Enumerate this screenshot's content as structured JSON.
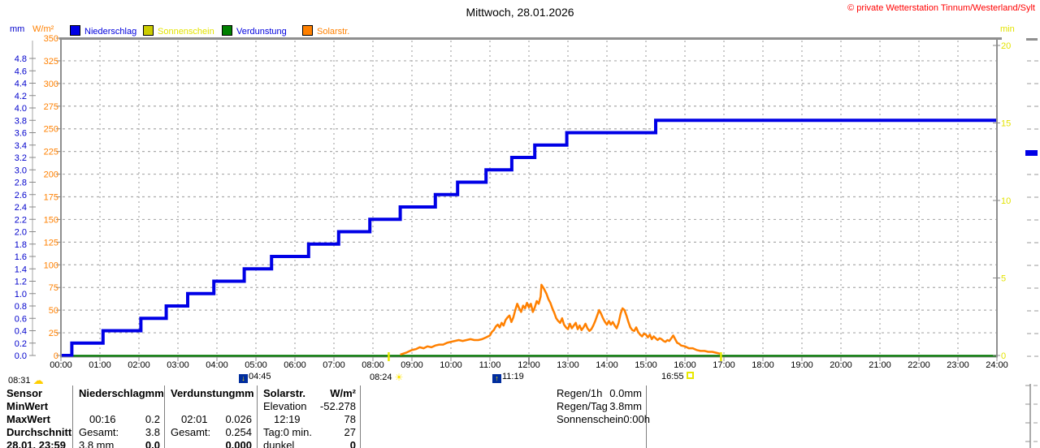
{
  "header": {
    "title": "Mittwoch, 28.01.2026",
    "copyright": "© private Wetterstation Tinnum/Westerland/Sylt"
  },
  "units": {
    "mm": "mm",
    "wm2": "W/m²",
    "min": "min"
  },
  "legend": {
    "items": [
      {
        "label": "Niederschlag",
        "box_color": "#0000e6",
        "text_color": "#0000dd"
      },
      {
        "label": "Sonnenschein",
        "box_color": "#cccc00",
        "text_color": "#e3e300"
      },
      {
        "label": "Verdunstung",
        "box_color": "#008000",
        "text_color": "#0000dd"
      },
      {
        "label": "Solarstr.",
        "box_color": "#ff8000",
        "text_color": "#ff8000"
      }
    ]
  },
  "astro_markers": {
    "moonset": {
      "time": "04:45"
    },
    "sunrise": {
      "time": "08:24"
    },
    "moonrise": {
      "time": "11:19"
    },
    "sunset": {
      "time": "16:55"
    },
    "corner": {
      "time": "08:31"
    }
  },
  "chart_data": {
    "type": "line",
    "title": "Mittwoch, 28.01.2026",
    "grid": true,
    "x_axis": {
      "range_hours": [
        0,
        24
      ],
      "ticks": [
        "00:00",
        "01:00",
        "02:00",
        "03:00",
        "04:00",
        "05:00",
        "06:00",
        "07:00",
        "08:00",
        "09:00",
        "10:00",
        "11:00",
        "12:00",
        "13:00",
        "14:00",
        "15:00",
        "16:00",
        "17:00",
        "18:00",
        "19:00",
        "20:00",
        "21:00",
        "22:00",
        "23:00",
        "24:00"
      ]
    },
    "y_axes": [
      {
        "id": "mm",
        "side": "left",
        "color": "#0000cc",
        "ylim": [
          0,
          4.8
        ],
        "ticks": [
          "0.0",
          "0.2",
          "0.4",
          "0.6",
          "0.8",
          "1.0",
          "1.2",
          "1.4",
          "1.6",
          "1.8",
          "2.0",
          "2.2",
          "2.4",
          "2.6",
          "2.8",
          "3.0",
          "3.2",
          "3.4",
          "3.6",
          "3.8",
          "4.0",
          "4.2",
          "4.4",
          "4.6",
          "4.8"
        ]
      },
      {
        "id": "wm2",
        "side": "left",
        "color": "#ff8000",
        "ylim": [
          0,
          350
        ],
        "ticks": [
          "0",
          "25",
          "50",
          "75",
          "100",
          "125",
          "150",
          "175",
          "200",
          "225",
          "250",
          "275",
          "300",
          "325",
          "350"
        ]
      },
      {
        "id": "min",
        "side": "right",
        "color": "#e3e300",
        "ylim": [
          0,
          20
        ],
        "ticks": [
          "0",
          "5",
          "10",
          "15",
          "20"
        ]
      }
    ],
    "series": [
      {
        "name": "Niederschlag",
        "unit": "mm",
        "axis": "mm",
        "color": "#0000e6",
        "style": "step",
        "width": 4,
        "points": [
          [
            0,
            0
          ],
          [
            0.28,
            0.2
          ],
          [
            1.08,
            0.4
          ],
          [
            2.05,
            0.6
          ],
          [
            2.7,
            0.8
          ],
          [
            3.25,
            1.0
          ],
          [
            3.92,
            1.2
          ],
          [
            4.7,
            1.4
          ],
          [
            5.4,
            1.6
          ],
          [
            6.35,
            1.8
          ],
          [
            7.12,
            2.0
          ],
          [
            7.92,
            2.2
          ],
          [
            8.7,
            2.4
          ],
          [
            9.6,
            2.6
          ],
          [
            10.17,
            2.8
          ],
          [
            10.9,
            3.0
          ],
          [
            11.56,
            3.2
          ],
          [
            12.15,
            3.4
          ],
          [
            12.97,
            3.6
          ],
          [
            15.25,
            3.8
          ],
          [
            24,
            3.8
          ]
        ]
      },
      {
        "name": "Verdunstung",
        "unit": "mm",
        "axis": "mm",
        "color": "#007700",
        "style": "line",
        "width": 2.5,
        "points": [
          [
            0,
            0
          ],
          [
            24,
            0
          ]
        ]
      },
      {
        "name": "Sonnenschein",
        "unit": "min",
        "axis": "min",
        "color": "#cccc00",
        "style": "line",
        "width": 2,
        "points": []
      },
      {
        "name": "Solarstr.",
        "unit": "W/m²",
        "axis": "wm2",
        "color": "#ff8000",
        "style": "line",
        "width": 2.5,
        "points": [
          [
            8.7,
            1
          ],
          [
            8.85,
            3
          ],
          [
            9.0,
            6
          ],
          [
            9.1,
            7
          ],
          [
            9.2,
            9
          ],
          [
            9.3,
            8
          ],
          [
            9.4,
            10
          ],
          [
            9.5,
            9
          ],
          [
            9.6,
            11
          ],
          [
            9.7,
            12
          ],
          [
            9.8,
            12
          ],
          [
            9.9,
            14
          ],
          [
            10.0,
            15
          ],
          [
            10.1,
            16
          ],
          [
            10.2,
            17
          ],
          [
            10.3,
            16
          ],
          [
            10.4,
            17
          ],
          [
            10.5,
            18
          ],
          [
            10.6,
            17
          ],
          [
            10.7,
            17
          ],
          [
            10.8,
            18
          ],
          [
            10.9,
            20
          ],
          [
            11.0,
            22
          ],
          [
            11.05,
            26
          ],
          [
            11.1,
            28
          ],
          [
            11.15,
            32
          ],
          [
            11.2,
            34
          ],
          [
            11.25,
            31
          ],
          [
            11.3,
            36
          ],
          [
            11.35,
            33
          ],
          [
            11.4,
            39
          ],
          [
            11.45,
            42
          ],
          [
            11.5,
            44
          ],
          [
            11.55,
            37
          ],
          [
            11.6,
            42
          ],
          [
            11.65,
            50
          ],
          [
            11.7,
            57
          ],
          [
            11.75,
            52
          ],
          [
            11.8,
            48
          ],
          [
            11.85,
            55
          ],
          [
            11.9,
            52
          ],
          [
            11.95,
            58
          ],
          [
            12.0,
            53
          ],
          [
            12.05,
            57
          ],
          [
            12.1,
            48
          ],
          [
            12.15,
            53
          ],
          [
            12.2,
            60
          ],
          [
            12.25,
            57
          ],
          [
            12.3,
            65
          ],
          [
            12.32,
            78
          ],
          [
            12.38,
            74
          ],
          [
            12.45,
            68
          ],
          [
            12.5,
            62
          ],
          [
            12.55,
            58
          ],
          [
            12.6,
            52
          ],
          [
            12.65,
            47
          ],
          [
            12.7,
            41
          ],
          [
            12.75,
            38
          ],
          [
            12.8,
            36
          ],
          [
            12.85,
            41
          ],
          [
            12.9,
            34
          ],
          [
            12.95,
            31
          ],
          [
            13.0,
            29
          ],
          [
            13.05,
            35
          ],
          [
            13.1,
            30
          ],
          [
            13.15,
            33
          ],
          [
            13.2,
            36
          ],
          [
            13.25,
            29
          ],
          [
            13.3,
            33
          ],
          [
            13.35,
            28
          ],
          [
            13.4,
            31
          ],
          [
            13.45,
            35
          ],
          [
            13.5,
            30
          ],
          [
            13.55,
            27
          ],
          [
            13.6,
            29
          ],
          [
            13.65,
            33
          ],
          [
            13.7,
            38
          ],
          [
            13.75,
            44
          ],
          [
            13.8,
            50
          ],
          [
            13.85,
            46
          ],
          [
            13.9,
            41
          ],
          [
            13.95,
            37
          ],
          [
            14.0,
            34
          ],
          [
            14.05,
            38
          ],
          [
            14.1,
            34
          ],
          [
            14.15,
            37
          ],
          [
            14.2,
            33
          ],
          [
            14.25,
            30
          ],
          [
            14.3,
            36
          ],
          [
            14.35,
            46
          ],
          [
            14.4,
            52
          ],
          [
            14.45,
            50
          ],
          [
            14.5,
            44
          ],
          [
            14.55,
            37
          ],
          [
            14.6,
            31
          ],
          [
            14.65,
            28
          ],
          [
            14.7,
            27
          ],
          [
            14.75,
            31
          ],
          [
            14.8,
            26
          ],
          [
            14.85,
            23
          ],
          [
            14.9,
            21
          ],
          [
            14.95,
            24
          ],
          [
            15.0,
            23
          ],
          [
            15.05,
            20
          ],
          [
            15.1,
            23
          ],
          [
            15.15,
            18
          ],
          [
            15.2,
            21
          ],
          [
            15.25,
            19
          ],
          [
            15.3,
            17
          ],
          [
            15.35,
            19
          ],
          [
            15.4,
            18
          ],
          [
            15.45,
            16
          ],
          [
            15.5,
            15
          ],
          [
            15.55,
            17
          ],
          [
            15.6,
            16
          ],
          [
            15.65,
            19
          ],
          [
            15.7,
            22
          ],
          [
            15.75,
            18
          ],
          [
            15.8,
            14
          ],
          [
            15.85,
            13
          ],
          [
            15.9,
            11
          ],
          [
            16.0,
            10
          ],
          [
            16.1,
            8
          ],
          [
            16.2,
            8
          ],
          [
            16.3,
            6
          ],
          [
            16.4,
            5
          ],
          [
            16.5,
            5
          ],
          [
            16.6,
            4
          ],
          [
            16.7,
            4
          ],
          [
            16.8,
            3
          ],
          [
            16.9,
            2
          ]
        ]
      }
    ],
    "event_ticks_hours": {
      "sunrise": 8.4,
      "sunset": 16.92
    },
    "annotations": [
      "04:45 moonset",
      "08:24 sunrise",
      "11:19 moonrise",
      "16:55 sunset"
    ]
  },
  "summary_table": {
    "row_headers": [
      "Sensor",
      "MinWert",
      "MaxWert",
      "Durchschnitt",
      "28.01. 23:59"
    ],
    "niederschlag": {
      "title": "Niederschlag",
      "unit": "mm",
      "max_time": "00:16",
      "max_val": "0.2",
      "avg_label": "Gesamt:",
      "avg_val": "3.8",
      "last_label": "3.8 mm",
      "last_val": "0.0"
    },
    "verdunstung": {
      "title": "Verdunstung",
      "unit": "mm",
      "max_time": "02:01",
      "max_val": "0.026",
      "avg_label": "Gesamt:",
      "avg_val": "0.254",
      "last_label": "",
      "last_val": "0.000"
    },
    "solarstr": {
      "title": "Solarstr.",
      "unit": "W/m²",
      "min_label": "Elevation",
      "min_val": "-52.278",
      "max_time": "12:19",
      "max_val": "78",
      "avg_label": "Tag:0 min.",
      "avg_val": "27",
      "last_label": "dunkel",
      "last_val": "0"
    }
  },
  "rain_stats": [
    {
      "label": "Regen/1h",
      "value": "0.0mm"
    },
    {
      "label": "Regen/Tag",
      "value": "3.8mm"
    },
    {
      "label": "Sonnenschein",
      "value": "0:00h"
    }
  ]
}
